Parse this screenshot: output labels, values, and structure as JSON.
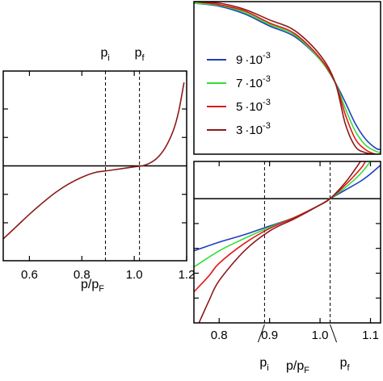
{
  "chart_data": [
    {
      "type": "line",
      "panel": "left",
      "xlabel": "p/p",
      "xlabel_sub": "F",
      "xlim": [
        0.5,
        1.2
      ],
      "ylim": [
        -1.0,
        1.0
      ],
      "x_ticks": [
        {
          "value": 0.6,
          "label": "0.6"
        },
        {
          "value": 0.8,
          "label": "0.8"
        },
        {
          "value": 1.0,
          "label": "1.0"
        },
        {
          "value": 1.2,
          "label": "1.2"
        }
      ],
      "y_ticks": [
        -0.6,
        -0.3,
        0.3,
        0.6
      ],
      "reference_line_y": 0,
      "markers": [
        {
          "name": "p",
          "sub": "i",
          "x": 0.89
        },
        {
          "name": "p",
          "sub": "f",
          "x": 1.02
        }
      ],
      "series": [
        {
          "color": "#8b1a1a",
          "x": [
            0.5,
            0.55,
            0.6,
            0.65,
            0.7,
            0.75,
            0.8,
            0.85,
            0.9,
            0.95,
            1.0,
            1.03,
            1.06,
            1.09,
            1.12,
            1.15,
            1.17,
            1.19
          ],
          "y": [
            -0.77,
            -0.64,
            -0.51,
            -0.39,
            -0.28,
            -0.19,
            -0.12,
            -0.07,
            -0.05,
            -0.03,
            -0.01,
            0.0,
            0.03,
            0.09,
            0.2,
            0.38,
            0.58,
            0.88
          ]
        }
      ]
    },
    {
      "type": "line",
      "panel": "top-right",
      "xlim": [
        0.75,
        1.12
      ],
      "ylim": [
        0,
        1
      ],
      "legend": {
        "placement": "left",
        "entries": [
          {
            "color": "#1f3fbf",
            "mantissa": "9",
            "exp": "-3"
          },
          {
            "color": "#33dd33",
            "mantissa": "7",
            "exp": "-3"
          },
          {
            "color": "#e01818",
            "mantissa": "5",
            "exp": "-3"
          },
          {
            "color": "#8b1a1a",
            "mantissa": "3",
            "exp": "-3"
          }
        ],
        "times_glyph": "·10"
      },
      "series": [
        {
          "color": "#1f3fbf",
          "x": [
            0.75,
            0.8,
            0.85,
            0.9,
            0.95,
            1.0,
            1.03,
            1.05,
            1.07,
            1.09,
            1.11,
            1.12
          ],
          "y": [
            0.99,
            0.97,
            0.92,
            0.84,
            0.77,
            0.62,
            0.47,
            0.34,
            0.2,
            0.1,
            0.04,
            0.03
          ]
        },
        {
          "color": "#33dd33",
          "x": [
            0.75,
            0.8,
            0.85,
            0.9,
            0.95,
            1.0,
            1.03,
            1.05,
            1.07,
            1.09,
            1.11,
            1.12
          ],
          "y": [
            0.99,
            0.975,
            0.93,
            0.85,
            0.78,
            0.62,
            0.47,
            0.3,
            0.15,
            0.06,
            0.02,
            0.01
          ]
        },
        {
          "color": "#e01818",
          "x": [
            0.75,
            0.8,
            0.85,
            0.9,
            0.95,
            1.0,
            1.03,
            1.05,
            1.07,
            1.09,
            1.11,
            1.12
          ],
          "y": [
            1.0,
            0.98,
            0.94,
            0.86,
            0.79,
            0.63,
            0.47,
            0.26,
            0.1,
            0.03,
            0.0,
            0.0
          ]
        },
        {
          "color": "#8b1a1a",
          "x": [
            0.75,
            0.8,
            0.85,
            0.9,
            0.95,
            1.0,
            1.03,
            1.05,
            1.07,
            1.09,
            1.11,
            1.12
          ],
          "y": [
            1.0,
            0.99,
            0.95,
            0.88,
            0.81,
            0.65,
            0.47,
            0.2,
            0.05,
            0.01,
            0.0,
            0.0
          ]
        }
      ]
    },
    {
      "type": "line",
      "panel": "bottom-right",
      "xlabel": "p/p",
      "xlabel_sub": "F",
      "xlim": [
        0.75,
        1.12
      ],
      "ylim": [
        -1.0,
        0.3
      ],
      "x_ticks": [
        {
          "value": 0.8,
          "label": "0.8"
        },
        {
          "value": 0.9,
          "label": "0.9"
        },
        {
          "value": 1.0,
          "label": "1.0"
        },
        {
          "value": 1.1,
          "label": "1.1"
        }
      ],
      "y_ticks": [
        -0.8,
        -0.6,
        -0.4,
        -0.2
      ],
      "reference_line_y": 0,
      "markers": [
        {
          "name": "p",
          "sub": "i",
          "x": 0.89
        },
        {
          "name": "p",
          "sub": "f",
          "x": 1.02
        }
      ],
      "series": [
        {
          "color": "#1f3fbf",
          "x": [
            0.75,
            0.8,
            0.85,
            0.9,
            0.95,
            1.0,
            1.02,
            1.05,
            1.08,
            1.1,
            1.12
          ],
          "y": [
            -0.42,
            -0.35,
            -0.29,
            -0.22,
            -0.15,
            -0.05,
            0.0,
            0.07,
            0.14,
            0.2,
            0.27
          ]
        },
        {
          "color": "#33dd33",
          "x": [
            0.75,
            0.8,
            0.85,
            0.9,
            0.95,
            1.0,
            1.02,
            1.05,
            1.08,
            1.1
          ],
          "y": [
            -0.55,
            -0.42,
            -0.32,
            -0.23,
            -0.15,
            -0.05,
            0.0,
            0.09,
            0.2,
            0.3
          ]
        },
        {
          "color": "#e01818",
          "x": [
            0.75,
            0.78,
            0.8,
            0.85,
            0.9,
            0.95,
            1.0,
            1.02,
            1.05,
            1.08,
            1.09
          ],
          "y": [
            -0.75,
            -0.62,
            -0.52,
            -0.36,
            -0.24,
            -0.15,
            -0.05,
            0.0,
            0.11,
            0.24,
            0.3
          ]
        },
        {
          "color": "#8b1a1a",
          "x": [
            0.76,
            0.78,
            0.8,
            0.85,
            0.9,
            0.95,
            1.0,
            1.02,
            1.05,
            1.07,
            1.08
          ],
          "y": [
            -1.0,
            -0.82,
            -0.66,
            -0.42,
            -0.26,
            -0.16,
            -0.05,
            0.0,
            0.13,
            0.24,
            0.3
          ]
        }
      ]
    }
  ]
}
